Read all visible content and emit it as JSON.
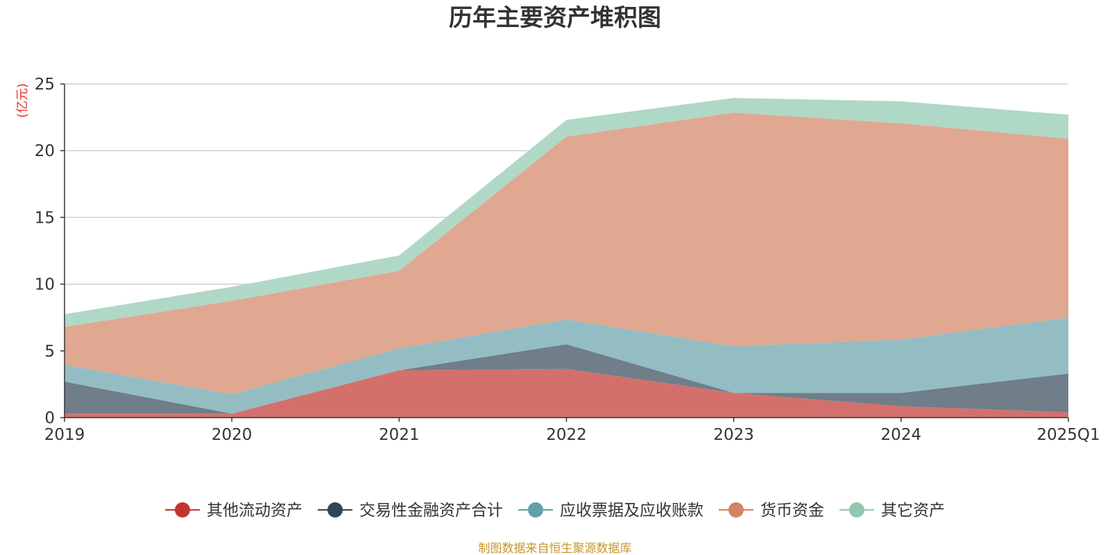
{
  "chart_data": {
    "type": "area",
    "stacked": true,
    "title": "历年主要资产堆积图",
    "ylabel": "(亿元)",
    "xlabel": "",
    "categories": [
      "2019",
      "2020",
      "2021",
      "2022",
      "2023",
      "2024",
      "2025Q1"
    ],
    "yticks": [
      "0",
      "5",
      "10",
      "15",
      "20",
      "25"
    ],
    "ylim": [
      0,
      25
    ],
    "grid": true,
    "legend_position": "bottom",
    "series": [
      {
        "name": "其他流动资产",
        "color": "#c23531",
        "area_color": "#d4706c",
        "values": [
          0.3,
          0.3,
          3.55,
          3.65,
          1.85,
          0.85,
          0.4
        ]
      },
      {
        "name": "交易性金融资产合计",
        "color": "#2f4554",
        "area_color": "#6f7e89",
        "values": [
          2.4,
          0.0,
          0.0,
          1.85,
          0.0,
          1.0,
          2.9
        ]
      },
      {
        "name": "应收票据及应收账款",
        "color": "#61a0a8",
        "area_color": "#93bdc3",
        "values": [
          1.25,
          1.45,
          1.65,
          1.85,
          3.5,
          4.0,
          4.2
        ]
      },
      {
        "name": "货币资金",
        "color": "#d48265",
        "area_color": "#e0a791",
        "values": [
          2.85,
          7.0,
          5.8,
          13.7,
          17.5,
          16.2,
          13.4
        ]
      },
      {
        "name": "其它资产",
        "color": "#91c7ae",
        "area_color": "#b0d8c6",
        "values": [
          0.95,
          1.05,
          1.15,
          1.25,
          1.1,
          1.65,
          1.8
        ]
      }
    ],
    "source": "制图数据来自恒生聚源数据库"
  }
}
